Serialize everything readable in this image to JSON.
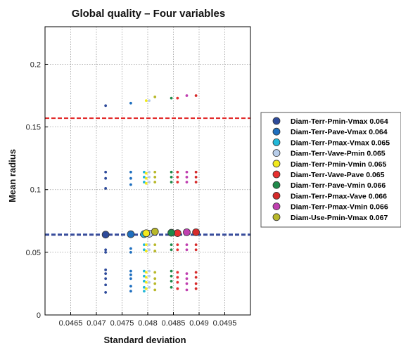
{
  "chart_data": {
    "type": "scatter",
    "title": "Global quality – Four variables",
    "xlabel": "Standard deviation",
    "ylabel": "Mean radius",
    "xlim": [
      0.046,
      0.05
    ],
    "ylim": [
      0,
      0.23
    ],
    "xticks": [
      0.0465,
      0.047,
      0.0475,
      0.048,
      0.0485,
      0.049,
      0.0495
    ],
    "xtick_labels": [
      "0.0465",
      "0.047",
      "0.0475",
      "0.048",
      "0.0485",
      "0.049",
      "0.0495"
    ],
    "yticks": [
      0,
      0.05,
      0.1,
      0.15,
      0.2
    ],
    "ytick_labels": [
      "0",
      "0.05",
      "0.1",
      "0.15",
      "0.2"
    ],
    "grid": true,
    "legend_position": "right-outside",
    "reference_lines": [
      {
        "y": 0.157,
        "color": "#e02020",
        "style": "dashed"
      },
      {
        "y": 0.0645,
        "color": "#6a7fc0",
        "style": "dashed"
      },
      {
        "y": 0.0638,
        "color": "#2a3f8f",
        "style": "dashed"
      }
    ],
    "series": [
      {
        "name": "Diam-Terr-Pmin-Vmax 0.064",
        "color": "#2e4b9b",
        "mean": [
          0.04718,
          0.0641
        ],
        "points": [
          [
            0.04718,
            0.167
          ],
          [
            0.04718,
            0.114
          ],
          [
            0.04718,
            0.109
          ],
          [
            0.04718,
            0.101
          ],
          [
            0.04718,
            0.065
          ],
          [
            0.04718,
            0.052
          ],
          [
            0.04718,
            0.05
          ],
          [
            0.04718,
            0.036
          ],
          [
            0.04718,
            0.033
          ],
          [
            0.04718,
            0.029
          ],
          [
            0.04718,
            0.024
          ],
          [
            0.04718,
            0.018
          ]
        ]
      },
      {
        "name": "Diam-Terr-Pave-Vmax 0.064",
        "color": "#1f6fbf",
        "mean": [
          0.04767,
          0.0644
        ],
        "points": [
          [
            0.04767,
            0.169
          ],
          [
            0.04767,
            0.114
          ],
          [
            0.04767,
            0.109
          ],
          [
            0.04767,
            0.104
          ],
          [
            0.04767,
            0.065
          ],
          [
            0.04767,
            0.053
          ],
          [
            0.04767,
            0.05
          ],
          [
            0.04767,
            0.035
          ],
          [
            0.04767,
            0.032
          ],
          [
            0.04767,
            0.029
          ],
          [
            0.04767,
            0.023
          ],
          [
            0.04767,
            0.019
          ]
        ]
      },
      {
        "name": "Diam-Terr-Pmax-Vmax 0.065",
        "color": "#22b8d8",
        "mean": [
          0.04793,
          0.0645
        ],
        "points": [
          [
            0.04793,
            0.114
          ],
          [
            0.04793,
            0.11
          ],
          [
            0.04793,
            0.106
          ],
          [
            0.04793,
            0.056
          ],
          [
            0.04793,
            0.052
          ],
          [
            0.04793,
            0.035
          ],
          [
            0.04793,
            0.031
          ],
          [
            0.04793,
            0.027
          ],
          [
            0.04793,
            0.022
          ],
          [
            0.04793,
            0.019
          ]
        ]
      },
      {
        "name": "Diam-Terr-Vave-Pmin 0.065",
        "color": "#b8cdea",
        "mean": [
          0.04803,
          0.0648
        ],
        "points": [
          [
            0.04803,
            0.171
          ],
          [
            0.04803,
            0.114
          ],
          [
            0.04803,
            0.11
          ],
          [
            0.04803,
            0.106
          ],
          [
            0.04803,
            0.056
          ],
          [
            0.04803,
            0.052
          ],
          [
            0.04803,
            0.035
          ],
          [
            0.04803,
            0.031
          ],
          [
            0.04803,
            0.026
          ],
          [
            0.04803,
            0.022
          ]
        ]
      },
      {
        "name": "Diam-Terr-Pmin-Vmin 0.065",
        "color": "#f2ea1c",
        "mean": [
          0.04797,
          0.0652
        ],
        "points": [
          [
            0.04797,
            0.171
          ],
          [
            0.04797,
            0.113
          ],
          [
            0.04797,
            0.109
          ],
          [
            0.04797,
            0.105
          ],
          [
            0.04797,
            0.056
          ],
          [
            0.04797,
            0.051
          ],
          [
            0.04797,
            0.034
          ],
          [
            0.04797,
            0.03
          ],
          [
            0.04797,
            0.026
          ],
          [
            0.04797,
            0.021
          ]
        ]
      },
      {
        "name": "Diam-Terr-Vave-Pave 0.065",
        "color": "#e83030",
        "mean": [
          0.04858,
          0.0653
        ],
        "points": [
          [
            0.04858,
            0.173
          ],
          [
            0.04858,
            0.114
          ],
          [
            0.04858,
            0.11
          ],
          [
            0.04858,
            0.106
          ],
          [
            0.04858,
            0.056
          ],
          [
            0.04858,
            0.052
          ],
          [
            0.04858,
            0.034
          ],
          [
            0.04858,
            0.03
          ],
          [
            0.04858,
            0.026
          ],
          [
            0.04858,
            0.021
          ]
        ]
      },
      {
        "name": "Diam-Terr-Pave-Vmin 0.066",
        "color": "#1f8a4a",
        "mean": [
          0.04846,
          0.0656
        ],
        "points": [
          [
            0.04846,
            0.173
          ],
          [
            0.04846,
            0.114
          ],
          [
            0.04846,
            0.11
          ],
          [
            0.04846,
            0.106
          ],
          [
            0.04846,
            0.056
          ],
          [
            0.04846,
            0.052
          ],
          [
            0.04846,
            0.035
          ],
          [
            0.04846,
            0.031
          ],
          [
            0.04846,
            0.027
          ],
          [
            0.04846,
            0.022
          ]
        ]
      },
      {
        "name": "Diam-Terr-Pmax-Vave 0.066",
        "color": "#d62a2a",
        "mean": [
          0.04894,
          0.066
        ],
        "points": [
          [
            0.04894,
            0.175
          ],
          [
            0.04894,
            0.114
          ],
          [
            0.04894,
            0.11
          ],
          [
            0.04894,
            0.106
          ],
          [
            0.04894,
            0.056
          ],
          [
            0.04894,
            0.052
          ],
          [
            0.04894,
            0.034
          ],
          [
            0.04894,
            0.03
          ],
          [
            0.04894,
            0.025
          ],
          [
            0.04894,
            0.021
          ]
        ]
      },
      {
        "name": "Diam-Terr-Pmax-Vmin 0.066",
        "color": "#c040b0",
        "mean": [
          0.04876,
          0.066
        ],
        "points": [
          [
            0.04876,
            0.175
          ],
          [
            0.04876,
            0.114
          ],
          [
            0.04876,
            0.11
          ],
          [
            0.04876,
            0.106
          ],
          [
            0.04876,
            0.056
          ],
          [
            0.04876,
            0.052
          ],
          [
            0.04876,
            0.033
          ],
          [
            0.04876,
            0.029
          ],
          [
            0.04876,
            0.025
          ],
          [
            0.04876,
            0.02
          ]
        ]
      },
      {
        "name": "Diam-Use-Pmin-Vmax 0.067",
        "color": "#b8b82a",
        "mean": [
          0.04814,
          0.0665
        ],
        "points": [
          [
            0.04814,
            0.174
          ],
          [
            0.04814,
            0.114
          ],
          [
            0.04814,
            0.11
          ],
          [
            0.04814,
            0.106
          ],
          [
            0.04814,
            0.056
          ],
          [
            0.04814,
            0.051
          ],
          [
            0.04814,
            0.034
          ],
          [
            0.04814,
            0.029
          ],
          [
            0.04814,
            0.025
          ],
          [
            0.04814,
            0.02
          ]
        ]
      }
    ]
  }
}
